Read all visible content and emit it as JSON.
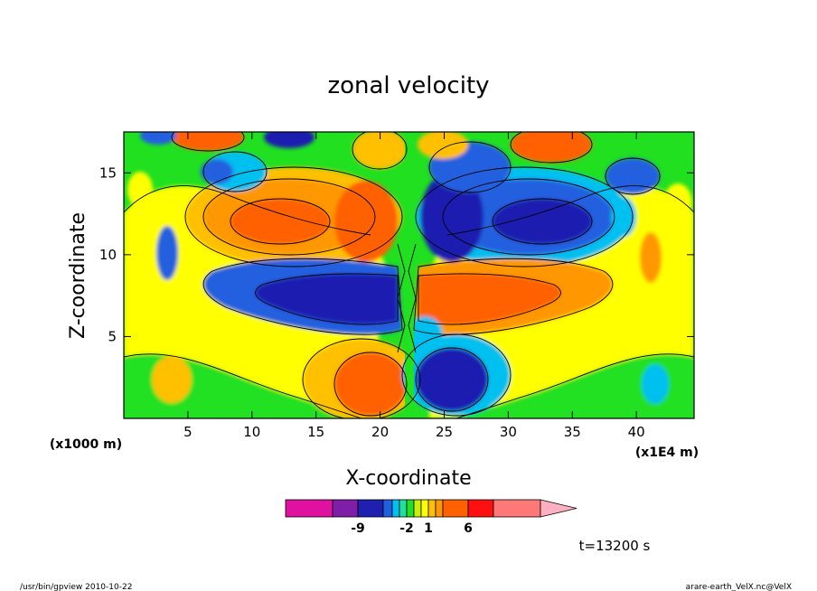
{
  "chart_data": {
    "type": "heatmap",
    "title": "zonal velocity",
    "xlabel": "X-coordinate",
    "ylabel": "Z-coordinate",
    "x_unit_left": "(x1000 m)",
    "x_unit_right": "(x1E4 m)",
    "x_ticks": [
      "5",
      "10",
      "15",
      "20",
      "25",
      "30",
      "35",
      "40"
    ],
    "x_tick_values": [
      5,
      10,
      15,
      20,
      25,
      30,
      35,
      40
    ],
    "y_ticks": [
      "5",
      "10",
      "15"
    ],
    "y_tick_values": [
      5,
      10,
      15
    ],
    "xlim": [
      0,
      44.5
    ],
    "ylim": [
      0,
      17.5
    ],
    "colorbar": {
      "labels": [
        "-9",
        "-2",
        "1",
        "6"
      ],
      "label_indices": [
        2,
        6,
        9,
        12
      ],
      "colors": [
        "#e0119f",
        "#7f1fa8",
        "#1f1fb0",
        "#2060e0",
        "#00c0f0",
        "#20e0a0",
        "#20e020",
        "#c8f000",
        "#ffff00",
        "#ffc000",
        "#ff9800",
        "#ff6000",
        "#ff1010",
        "#ff7878",
        "#ffb0c0"
      ]
    },
    "features": [
      {
        "kind": "positive-lobe",
        "label": "upper-left",
        "color": "#ff6000"
      },
      {
        "kind": "negative-lobe",
        "label": "lower-left",
        "color": "#1f1fb0"
      },
      {
        "kind": "negative-lobe",
        "label": "upper-right",
        "color": "#1f1fb0"
      },
      {
        "kind": "positive-lobe",
        "label": "lower-right",
        "color": "#ff6000"
      }
    ],
    "grid": false
  },
  "time_label": "t=13200 s",
  "footer": {
    "left": "/usr/bin/gpview   2010-10-22",
    "right": "arare-earth_VelX.nc@VelX"
  }
}
